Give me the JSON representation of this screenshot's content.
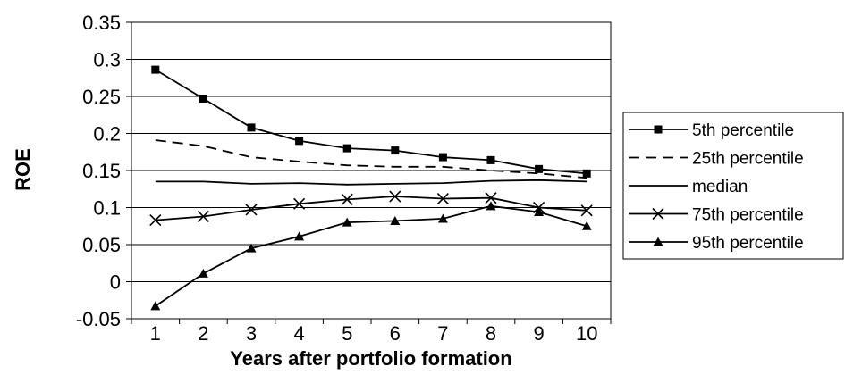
{
  "chart_data": {
    "type": "line",
    "xlabel": "Years after portfolio formation",
    "ylabel": "ROE",
    "x": [
      1,
      2,
      3,
      4,
      5,
      6,
      7,
      8,
      9,
      10
    ],
    "ylim": [
      -0.05,
      0.35
    ],
    "yticks": [
      "-0.05",
      "0",
      "0.05",
      "0.1",
      "0.15",
      "0.2",
      "0.25",
      "0.3",
      "0.35"
    ],
    "grid": true,
    "legend_position": "right",
    "series": [
      {
        "name": "5th percentile",
        "marker": "square",
        "dash": "solid",
        "values": [
          0.286,
          0.247,
          0.208,
          0.19,
          0.18,
          0.177,
          0.168,
          0.164,
          0.152,
          0.146
        ]
      },
      {
        "name": "25th percentile",
        "marker": "none",
        "dash": "dashed",
        "values": [
          0.191,
          0.183,
          0.168,
          0.162,
          0.157,
          0.155,
          0.155,
          0.15,
          0.146,
          0.14
        ]
      },
      {
        "name": "median",
        "marker": "none",
        "dash": "solid",
        "values": [
          0.135,
          0.135,
          0.132,
          0.133,
          0.131,
          0.132,
          0.133,
          0.136,
          0.137,
          0.135
        ]
      },
      {
        "name": "75th percentile",
        "marker": "x",
        "dash": "solid",
        "values": [
          0.083,
          0.088,
          0.097,
          0.105,
          0.111,
          0.115,
          0.112,
          0.113,
          0.1,
          0.096
        ]
      },
      {
        "name": "95th percentile",
        "marker": "triangle",
        "dash": "solid",
        "values": [
          -0.033,
          0.011,
          0.045,
          0.061,
          0.08,
          0.082,
          0.085,
          0.102,
          0.094,
          0.075
        ]
      }
    ]
  }
}
